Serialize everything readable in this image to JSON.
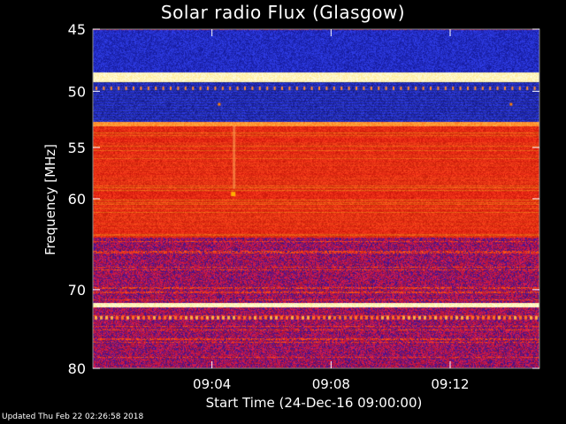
{
  "chart_data": {
    "type": "heatmap",
    "title": "Solar radio Flux (Glasgow)",
    "xlabel": "Start Time (24-Dec-16 09:00:00)",
    "ylabel": "Frequency [MHz]",
    "x_ticks": [
      "09:04",
      "09:08",
      "09:12"
    ],
    "x_tick_minutes": [
      4,
      8,
      12
    ],
    "x_range_minutes": [
      0,
      15
    ],
    "y_ticks": [
      45,
      50,
      55,
      60,
      70,
      80
    ],
    "ylim": [
      45,
      80
    ],
    "y_scale": "log",
    "colormap": [
      "#1a1a8c",
      "#3030e0",
      "#8a0a1a",
      "#c81010",
      "#f03010",
      "#ff8000",
      "#ffe050",
      "#ffffe0"
    ],
    "bands": [
      {
        "from": 45,
        "to": 48.4,
        "level": "low"
      },
      {
        "from": 48.4,
        "to": 49.2,
        "level": "peak"
      },
      {
        "from": 49.2,
        "to": 52.6,
        "level": "low"
      },
      {
        "from": 52.6,
        "to": 53.0,
        "level": "high"
      },
      {
        "from": 53.0,
        "to": 60.5,
        "level": "mid"
      },
      {
        "from": 60.5,
        "to": 64.0,
        "level": "mid"
      },
      {
        "from": 64.0,
        "to": 71.5,
        "level": "low-mid"
      },
      {
        "from": 71.5,
        "to": 72.1,
        "level": "peak"
      },
      {
        "from": 72.1,
        "to": 80,
        "level": "low-mid"
      }
    ]
  },
  "footer": "Updated Thu Feb 22 02:26:58 2018"
}
